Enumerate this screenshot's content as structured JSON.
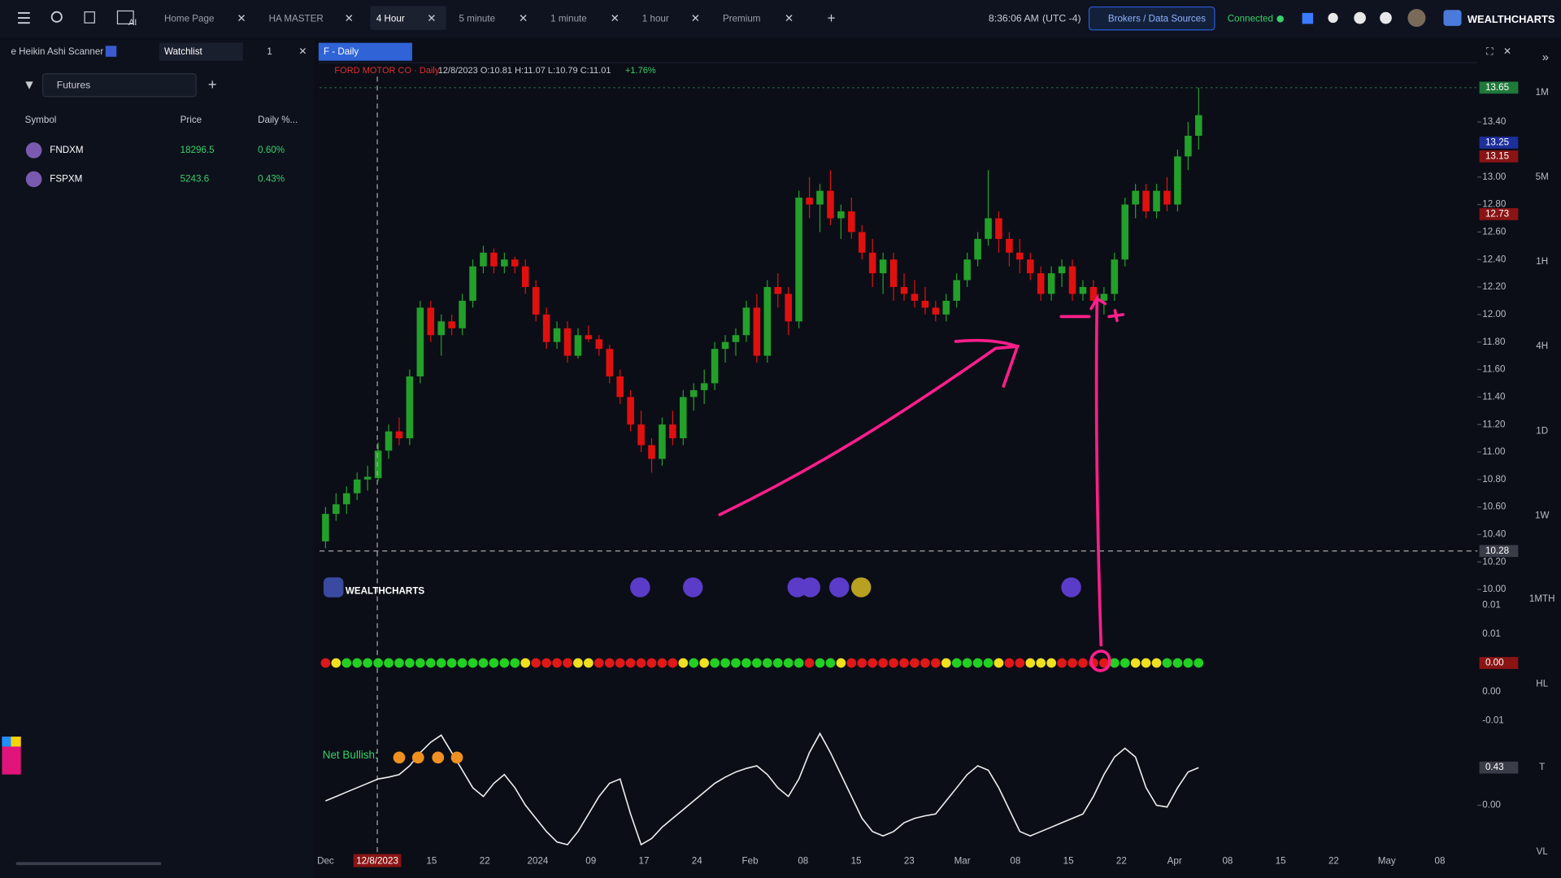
{
  "top_bar": {
    "tabs": [
      "Home Page",
      "HA MASTER",
      "4 Hour",
      "5 minute",
      "1 minute",
      "1 hour",
      "Premium"
    ],
    "time": "8:36:06 AM",
    "timezone": "(UTC -4)",
    "brokers": "Brokers / Data Sources",
    "status": "Connected",
    "brand": "WEALTHCHARTS"
  },
  "sidebar": {
    "tabs": [
      "e Heikin Ashi Scanner",
      "Watchlist"
    ],
    "watchlist_count": "1",
    "filter": "Futures",
    "columns": [
      "Symbol",
      "Price",
      "Daily %..."
    ],
    "rows": [
      [
        "FNDXM",
        "18296.5",
        "0.60%"
      ],
      [
        "FSPXM",
        "5243.6",
        "0.43%"
      ]
    ]
  },
  "chart": {
    "tab": "F - Daily",
    "legend": "FORD MOTOR CO · Daily",
    "ohlc_text": "12/8/2023 O:10.81 H:11.07 L:10.79 C:11.01",
    "change": "+1.76%",
    "watermark": "WEALTHCHARTS",
    "ylim": [
      9.9,
      13.73
    ],
    "price_ticks": [
      {
        "value": 13.4,
        "label": "13.40"
      },
      {
        "value": 13,
        "label": "13.00"
      },
      {
        "value": 12.8,
        "label": "12.80"
      },
      {
        "value": 12.6,
        "label": "12.60"
      },
      {
        "value": 12.4,
        "label": "12.40"
      },
      {
        "value": 12.2,
        "label": "12.20"
      },
      {
        "value": 12,
        "label": "12.00"
      },
      {
        "value": 11.8,
        "label": "11.80"
      },
      {
        "value": 11.6,
        "label": "11.60"
      },
      {
        "value": 11.4,
        "label": "11.40"
      },
      {
        "value": 11.2,
        "label": "11.20"
      },
      {
        "value": 11,
        "label": "11.00"
      },
      {
        "value": 10.8,
        "label": "10.80"
      },
      {
        "value": 10.6,
        "label": "10.60"
      },
      {
        "value": 10.4,
        "label": "10.40"
      },
      {
        "value": 10.2,
        "label": "10.20"
      },
      {
        "value": 10,
        "label": "10.00"
      }
    ],
    "badges": [
      {
        "value": 13.65,
        "color": "#1f7a3a"
      },
      {
        "value": 13.25,
        "color": "#1c2f9a"
      },
      {
        "value": 13.15,
        "color": "#8a1414"
      },
      {
        "value": 12.73,
        "color": "#8a1414"
      },
      {
        "value": 10.28,
        "color": "#3a3d48"
      }
    ],
    "up_color": "#23a02a",
    "down_color": "#e0100f",
    "candles": [
      [
        10.35,
        10.6,
        10.3,
        10.55
      ],
      [
        10.55,
        10.7,
        10.5,
        10.62
      ],
      [
        10.62,
        10.75,
        10.55,
        10.7
      ],
      [
        10.7,
        10.85,
        10.65,
        10.8
      ],
      [
        10.8,
        10.9,
        10.72,
        10.82
      ],
      [
        10.81,
        11.07,
        10.79,
        11.01
      ],
      [
        11.01,
        11.2,
        10.95,
        11.15
      ],
      [
        11.15,
        11.25,
        11.05,
        11.1
      ],
      [
        11.1,
        11.6,
        11.05,
        11.55
      ],
      [
        11.55,
        12.1,
        11.5,
        12.05
      ],
      [
        12.05,
        12.1,
        11.8,
        11.85
      ],
      [
        11.85,
        12,
        11.7,
        11.95
      ],
      [
        11.95,
        12,
        11.85,
        11.9
      ],
      [
        11.9,
        12.15,
        11.85,
        12.1
      ],
      [
        12.1,
        12.4,
        12.05,
        12.35
      ],
      [
        12.35,
        12.5,
        12.3,
        12.45
      ],
      [
        12.45,
        12.48,
        12.3,
        12.35
      ],
      [
        12.35,
        12.45,
        12.3,
        12.4
      ],
      [
        12.4,
        12.42,
        12.3,
        12.35
      ],
      [
        12.35,
        12.4,
        12.15,
        12.2
      ],
      [
        12.2,
        12.25,
        11.95,
        12
      ],
      [
        12,
        12.05,
        11.75,
        11.8
      ],
      [
        11.8,
        11.95,
        11.75,
        11.9
      ],
      [
        11.9,
        11.95,
        11.65,
        11.7
      ],
      [
        11.7,
        11.9,
        11.68,
        11.85
      ],
      [
        11.85,
        11.92,
        11.8,
        11.82
      ],
      [
        11.82,
        11.85,
        11.7,
        11.75
      ],
      [
        11.75,
        11.78,
        11.5,
        11.55
      ],
      [
        11.55,
        11.6,
        11.35,
        11.4
      ],
      [
        11.4,
        11.45,
        11.15,
        11.2
      ],
      [
        11.2,
        11.3,
        11,
        11.05
      ],
      [
        11.05,
        11.1,
        10.85,
        10.95
      ],
      [
        10.95,
        11.25,
        10.9,
        11.2
      ],
      [
        11.2,
        11.3,
        11.05,
        11.1
      ],
      [
        11.1,
        11.45,
        11.05,
        11.4
      ],
      [
        11.4,
        11.5,
        11.3,
        11.45
      ],
      [
        11.45,
        11.6,
        11.35,
        11.5
      ],
      [
        11.5,
        11.8,
        11.45,
        11.75
      ],
      [
        11.75,
        11.85,
        11.65,
        11.8
      ],
      [
        11.8,
        11.9,
        11.7,
        11.85
      ],
      [
        11.85,
        12.1,
        11.8,
        12.05
      ],
      [
        12.05,
        12.15,
        11.65,
        11.7
      ],
      [
        11.7,
        12.25,
        11.65,
        12.2
      ],
      [
        12.2,
        12.3,
        12.05,
        12.15
      ],
      [
        12.15,
        12.2,
        11.85,
        11.95
      ],
      [
        11.95,
        12.9,
        11.9,
        12.85
      ],
      [
        12.85,
        13,
        12.7,
        12.8
      ],
      [
        12.8,
        12.95,
        12.6,
        12.9
      ],
      [
        12.9,
        13.05,
        12.65,
        12.7
      ],
      [
        12.7,
        12.8,
        12.55,
        12.75
      ],
      [
        12.75,
        12.85,
        12.55,
        12.6
      ],
      [
        12.6,
        12.65,
        12.4,
        12.45
      ],
      [
        12.45,
        12.55,
        12.2,
        12.3
      ],
      [
        12.3,
        12.45,
        12.15,
        12.4
      ],
      [
        12.4,
        12.45,
        12.1,
        12.2
      ],
      [
        12.2,
        12.3,
        12.1,
        12.15
      ],
      [
        12.15,
        12.25,
        12.05,
        12.1
      ],
      [
        12.1,
        12.2,
        12,
        12.05
      ],
      [
        12.05,
        12.1,
        11.95,
        12
      ],
      [
        12,
        12.15,
        11.95,
        12.1
      ],
      [
        12.1,
        12.3,
        12.05,
        12.25
      ],
      [
        12.25,
        12.45,
        12.2,
        12.4
      ],
      [
        12.4,
        12.6,
        12.35,
        12.55
      ],
      [
        12.55,
        13.05,
        12.5,
        12.7
      ],
      [
        12.7,
        12.75,
        12.45,
        12.55
      ],
      [
        12.55,
        12.6,
        12.35,
        12.45
      ],
      [
        12.45,
        12.55,
        12.3,
        12.4
      ],
      [
        12.4,
        12.45,
        12.25,
        12.3
      ],
      [
        12.3,
        12.35,
        12.1,
        12.15
      ],
      [
        12.15,
        12.35,
        12.1,
        12.3
      ],
      [
        12.3,
        12.4,
        12.2,
        12.35
      ],
      [
        12.35,
        12.4,
        12.1,
        12.15
      ],
      [
        12.15,
        12.25,
        12.1,
        12.2
      ],
      [
        12.2,
        12.25,
        12.05,
        12.1
      ],
      [
        12.1,
        12.2,
        12,
        12.15
      ],
      [
        12.15,
        12.45,
        12.1,
        12.4
      ],
      [
        12.4,
        12.85,
        12.35,
        12.8
      ],
      [
        12.8,
        12.95,
        12.7,
        12.9
      ],
      [
        12.9,
        12.95,
        12.7,
        12.75
      ],
      [
        12.75,
        12.95,
        12.7,
        12.9
      ],
      [
        12.9,
        13,
        12.75,
        12.8
      ],
      [
        12.8,
        13.2,
        12.75,
        13.15
      ],
      [
        13.15,
        13.4,
        13.05,
        13.3
      ],
      [
        13.3,
        13.65,
        13.2,
        13.45
      ]
    ],
    "x_labels": [
      "Dec",
      null,
      "15",
      "22",
      "2024",
      "09",
      "17",
      "24",
      "Feb",
      "08",
      "15",
      "23",
      "Mar",
      "08",
      "15",
      "22",
      "Apr",
      "08",
      "15",
      "22",
      "May",
      "08"
    ],
    "crosshair_date": "12/8/2023",
    "timeframes": [
      "1M",
      "5M",
      "1H",
      "4H",
      "1D",
      "1W",
      "1MTH",
      "HL",
      "T",
      "VL"
    ],
    "signal": {
      "axis_labels": [
        "0.01",
        "0.01",
        "0.00",
        "0.00",
        "-0.01"
      ],
      "badge": "0.00",
      "colors": {
        "g": "#22d022",
        "r": "#e01818",
        "y": "#f0e020"
      },
      "codes": [
        "r",
        "y",
        "g",
        "g",
        "g",
        "g",
        "g",
        "g",
        "g",
        "g",
        "g",
        "g",
        "g",
        "g",
        "g",
        "g",
        "g",
        "g",
        "g",
        "y",
        "r",
        "r",
        "r",
        "r",
        "y",
        "y",
        "r",
        "r",
        "r",
        "r",
        "r",
        "r",
        "r",
        "r",
        "y",
        "g",
        "y",
        "g",
        "g",
        "g",
        "g",
        "g",
        "g",
        "g",
        "g",
        "g",
        "r",
        "g",
        "g",
        "y",
        "r",
        "r",
        "r",
        "r",
        "r",
        "r",
        "r",
        "r",
        "r",
        "y",
        "g",
        "g",
        "g",
        "g",
        "y",
        "r",
        "r",
        "y",
        "y",
        "y",
        "r",
        "r",
        "r",
        "r",
        "r",
        "g",
        "g",
        "y",
        "y",
        "y",
        "g",
        "g",
        "g",
        "g"
      ]
    },
    "oscillator": {
      "label": "Net Bullish:",
      "ylim": [
        -0.49,
        0.84
      ],
      "ticks": [
        {
          "value": 0,
          "label": "0.00"
        }
      ],
      "badge": 0.43,
      "values": [
        0.05,
        0.1,
        0.15,
        0.2,
        0.25,
        0.3,
        0.32,
        0.35,
        0.45,
        0.6,
        0.72,
        0.8,
        0.6,
        0.4,
        0.2,
        0.1,
        0.25,
        0.35,
        0.2,
        0,
        -0.15,
        -0.3,
        -0.42,
        -0.45,
        -0.3,
        -0.1,
        0.1,
        0.25,
        0.3,
        -0.1,
        -0.45,
        -0.38,
        -0.25,
        -0.15,
        -0.05,
        0.05,
        0.15,
        0.25,
        0.32,
        0.38,
        0.42,
        0.45,
        0.35,
        0.2,
        0.1,
        0.3,
        0.6,
        0.82,
        0.6,
        0.35,
        0.1,
        -0.15,
        -0.3,
        -0.35,
        -0.3,
        -0.2,
        -0.15,
        -0.12,
        -0.1,
        0.05,
        0.2,
        0.35,
        0.45,
        0.4,
        0.2,
        -0.05,
        -0.3,
        -0.35,
        -0.3,
        -0.25,
        -0.2,
        -0.15,
        -0.1,
        0.1,
        0.35,
        0.55,
        0.65,
        0.55,
        0.2,
        0,
        -0.02,
        0.2,
        0.38,
        0.43
      ]
    }
  }
}
